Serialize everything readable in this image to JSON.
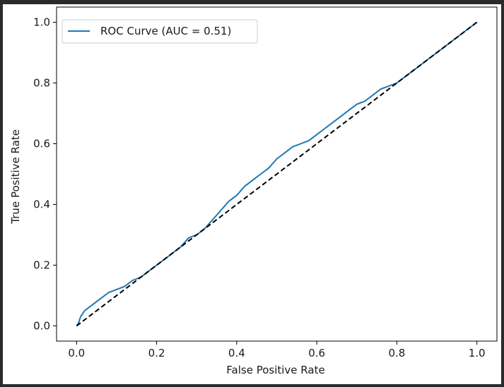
{
  "colors": {
    "roc": "#1f77b4",
    "diagonal": "#000000",
    "axes": "#000000",
    "frame": "#2b2b2b"
  },
  "chart_data": {
    "type": "line",
    "title": "",
    "xlabel": "False Positive Rate",
    "ylabel": "True Positive Rate",
    "xlim": [
      -0.05,
      1.05
    ],
    "ylim": [
      -0.05,
      1.05
    ],
    "grid": false,
    "legend": {
      "placement": "upper left",
      "entries": [
        "ROC Curve (AUC = 0.51)"
      ]
    },
    "x_ticks": [
      0.0,
      0.2,
      0.4,
      0.6,
      0.8,
      1.0
    ],
    "x_tick_labels": [
      "0.0",
      "0.2",
      "0.4",
      "0.6",
      "0.8",
      "1.0"
    ],
    "y_ticks": [
      0.0,
      0.2,
      0.4,
      0.6,
      0.8,
      1.0
    ],
    "y_tick_labels": [
      "0.0",
      "0.2",
      "0.4",
      "0.6",
      "0.8",
      "1.0"
    ],
    "series": [
      {
        "name": "ROC Curve (AUC = 0.51)",
        "style": "solid",
        "x": [
          0.0,
          0.005,
          0.01,
          0.015,
          0.02,
          0.03,
          0.04,
          0.05,
          0.06,
          0.07,
          0.08,
          0.1,
          0.12,
          0.14,
          0.16,
          0.18,
          0.2,
          0.22,
          0.24,
          0.26,
          0.28,
          0.3,
          0.32,
          0.34,
          0.36,
          0.38,
          0.4,
          0.42,
          0.44,
          0.46,
          0.48,
          0.5,
          0.52,
          0.54,
          0.56,
          0.58,
          0.6,
          0.62,
          0.64,
          0.66,
          0.68,
          0.7,
          0.72,
          0.74,
          0.76,
          0.78,
          0.8,
          0.82,
          0.84,
          0.86,
          0.88,
          0.9,
          0.92,
          0.94,
          0.96,
          0.98,
          1.0
        ],
        "y": [
          0.0,
          0.01,
          0.03,
          0.04,
          0.05,
          0.06,
          0.07,
          0.08,
          0.09,
          0.1,
          0.11,
          0.12,
          0.13,
          0.15,
          0.16,
          0.18,
          0.2,
          0.22,
          0.24,
          0.26,
          0.29,
          0.3,
          0.32,
          0.35,
          0.38,
          0.41,
          0.43,
          0.46,
          0.48,
          0.5,
          0.52,
          0.55,
          0.57,
          0.59,
          0.6,
          0.61,
          0.63,
          0.65,
          0.67,
          0.69,
          0.71,
          0.73,
          0.74,
          0.76,
          0.78,
          0.79,
          0.8,
          0.82,
          0.84,
          0.86,
          0.88,
          0.9,
          0.92,
          0.94,
          0.96,
          0.98,
          1.0
        ]
      },
      {
        "name": "",
        "style": "dashed",
        "x": [
          0.0,
          1.0
        ],
        "y": [
          0.0,
          1.0
        ]
      }
    ]
  }
}
